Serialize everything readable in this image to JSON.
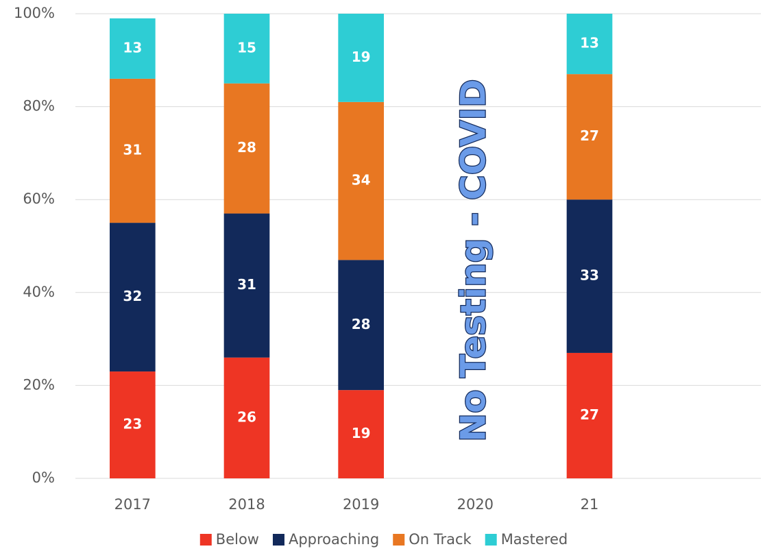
{
  "chart_data": {
    "type": "bar",
    "stacked": true,
    "categories": [
      "2017",
      "2018",
      "2019",
      "2020",
      "21",
      null
    ],
    "series": [
      {
        "name": "Below",
        "color": "#ee3524",
        "values": [
          23,
          26,
          19,
          null,
          27,
          null
        ]
      },
      {
        "name": "Approaching",
        "color": "#12295a",
        "values": [
          32,
          31,
          28,
          null,
          33,
          null
        ]
      },
      {
        "name": "On Track",
        "color": "#e87722",
        "values": [
          31,
          28,
          34,
          null,
          27,
          null
        ]
      },
      {
        "name": "Mastered",
        "color": "#2ecdd4",
        "values": [
          13,
          15,
          19,
          null,
          13,
          null
        ]
      }
    ],
    "ylim": [
      0,
      100
    ],
    "yticks": [
      {
        "value": 0,
        "label": "0%"
      },
      {
        "value": 20,
        "label": "20%"
      },
      {
        "value": 40,
        "label": "40%"
      },
      {
        "value": 60,
        "label": "60%"
      },
      {
        "value": 80,
        "label": "80%"
      },
      {
        "value": 100,
        "label": "100%"
      }
    ],
    "grid": true,
    "legend": "bottom",
    "annotation": "No Testing - COVID"
  }
}
